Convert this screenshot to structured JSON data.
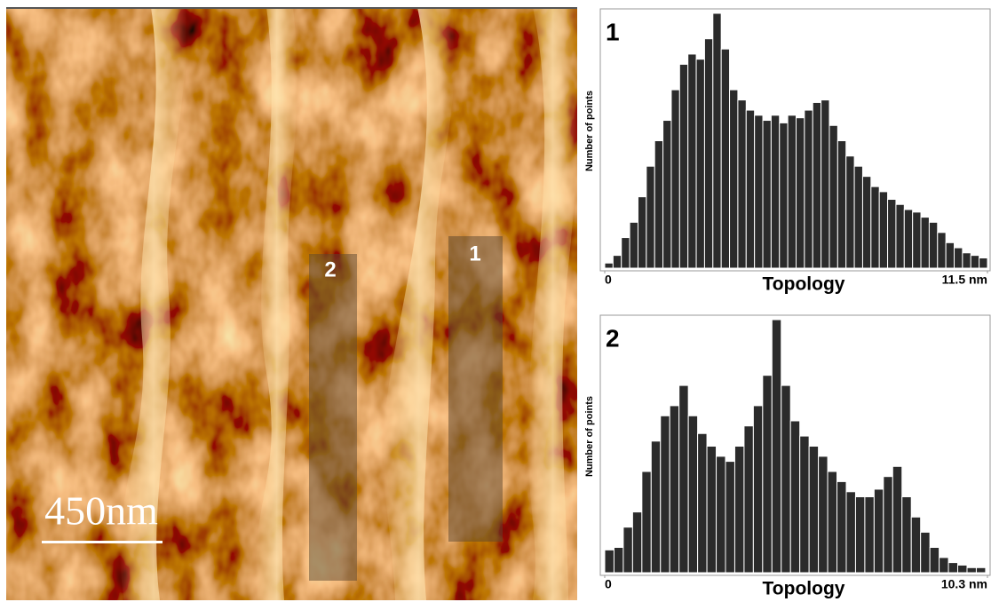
{
  "image": {
    "scale_bar": "450nm",
    "region_labels": [
      "1",
      "2"
    ]
  },
  "chart_data": [
    {
      "type": "histogram",
      "label": "1",
      "ylabel": "Number of points",
      "xlabel": "Topology",
      "color": "#2b2b2b",
      "xlim": [
        0,
        11.5
      ],
      "xticks": [
        0,
        {
          "value": 11.5,
          "label": "11.5 nm"
        }
      ],
      "ylim": [
        0,
        100
      ],
      "bins": [
        0,
        0.25,
        0.5,
        0.75,
        1,
        1.25,
        1.5,
        1.75,
        2,
        2.25,
        2.5,
        2.75,
        3,
        3.25,
        3.5,
        3.75,
        4,
        4.25,
        4.5,
        4.75,
        5,
        5.25,
        5.5,
        5.75,
        6,
        6.25,
        6.5,
        6.75,
        7,
        7.25,
        7.5,
        7.75,
        8,
        8.25,
        8.5,
        8.75,
        9,
        9.25,
        9.5,
        9.75,
        10,
        10.25,
        10.5,
        10.75,
        11,
        11.25,
        11.5
      ],
      "values": [
        2,
        5,
        12,
        18,
        28,
        40,
        50,
        58,
        70,
        80,
        84,
        82,
        90,
        100,
        86,
        70,
        66,
        62,
        60,
        58,
        60,
        57,
        60,
        59,
        62,
        65,
        66,
        56,
        50,
        44,
        40,
        36,
        32,
        30,
        27,
        25,
        23,
        22,
        20,
        18,
        14,
        10,
        8,
        6,
        5,
        4
      ]
    },
    {
      "type": "histogram",
      "label": "2",
      "ylabel": "Number of points",
      "xlabel": "Topology",
      "color": "#2b2b2b",
      "xlim": [
        0,
        10.3
      ],
      "xticks": [
        0,
        {
          "value": 10.3,
          "label": "10.3 nm"
        }
      ],
      "ylim": [
        0,
        100
      ],
      "bins": [
        0,
        0.25,
        0.5,
        0.75,
        1,
        1.25,
        1.5,
        1.75,
        2,
        2.25,
        2.5,
        2.75,
        3,
        3.25,
        3.5,
        3.75,
        4,
        4.25,
        4.5,
        4.75,
        5,
        5.25,
        5.5,
        5.75,
        6,
        6.25,
        6.5,
        6.75,
        7,
        7.25,
        7.5,
        7.75,
        8,
        8.25,
        8.5,
        8.75,
        9,
        9.25,
        9.5,
        9.75,
        10,
        10.25
      ],
      "values": [
        9,
        10,
        18,
        24,
        40,
        52,
        62,
        66,
        74,
        62,
        55,
        50,
        46,
        44,
        50,
        58,
        66,
        78,
        100,
        74,
        60,
        54,
        50,
        46,
        40,
        36,
        32,
        30,
        30,
        33,
        38,
        42,
        30,
        22,
        16,
        10,
        6,
        4,
        3,
        2,
        2
      ]
    }
  ]
}
